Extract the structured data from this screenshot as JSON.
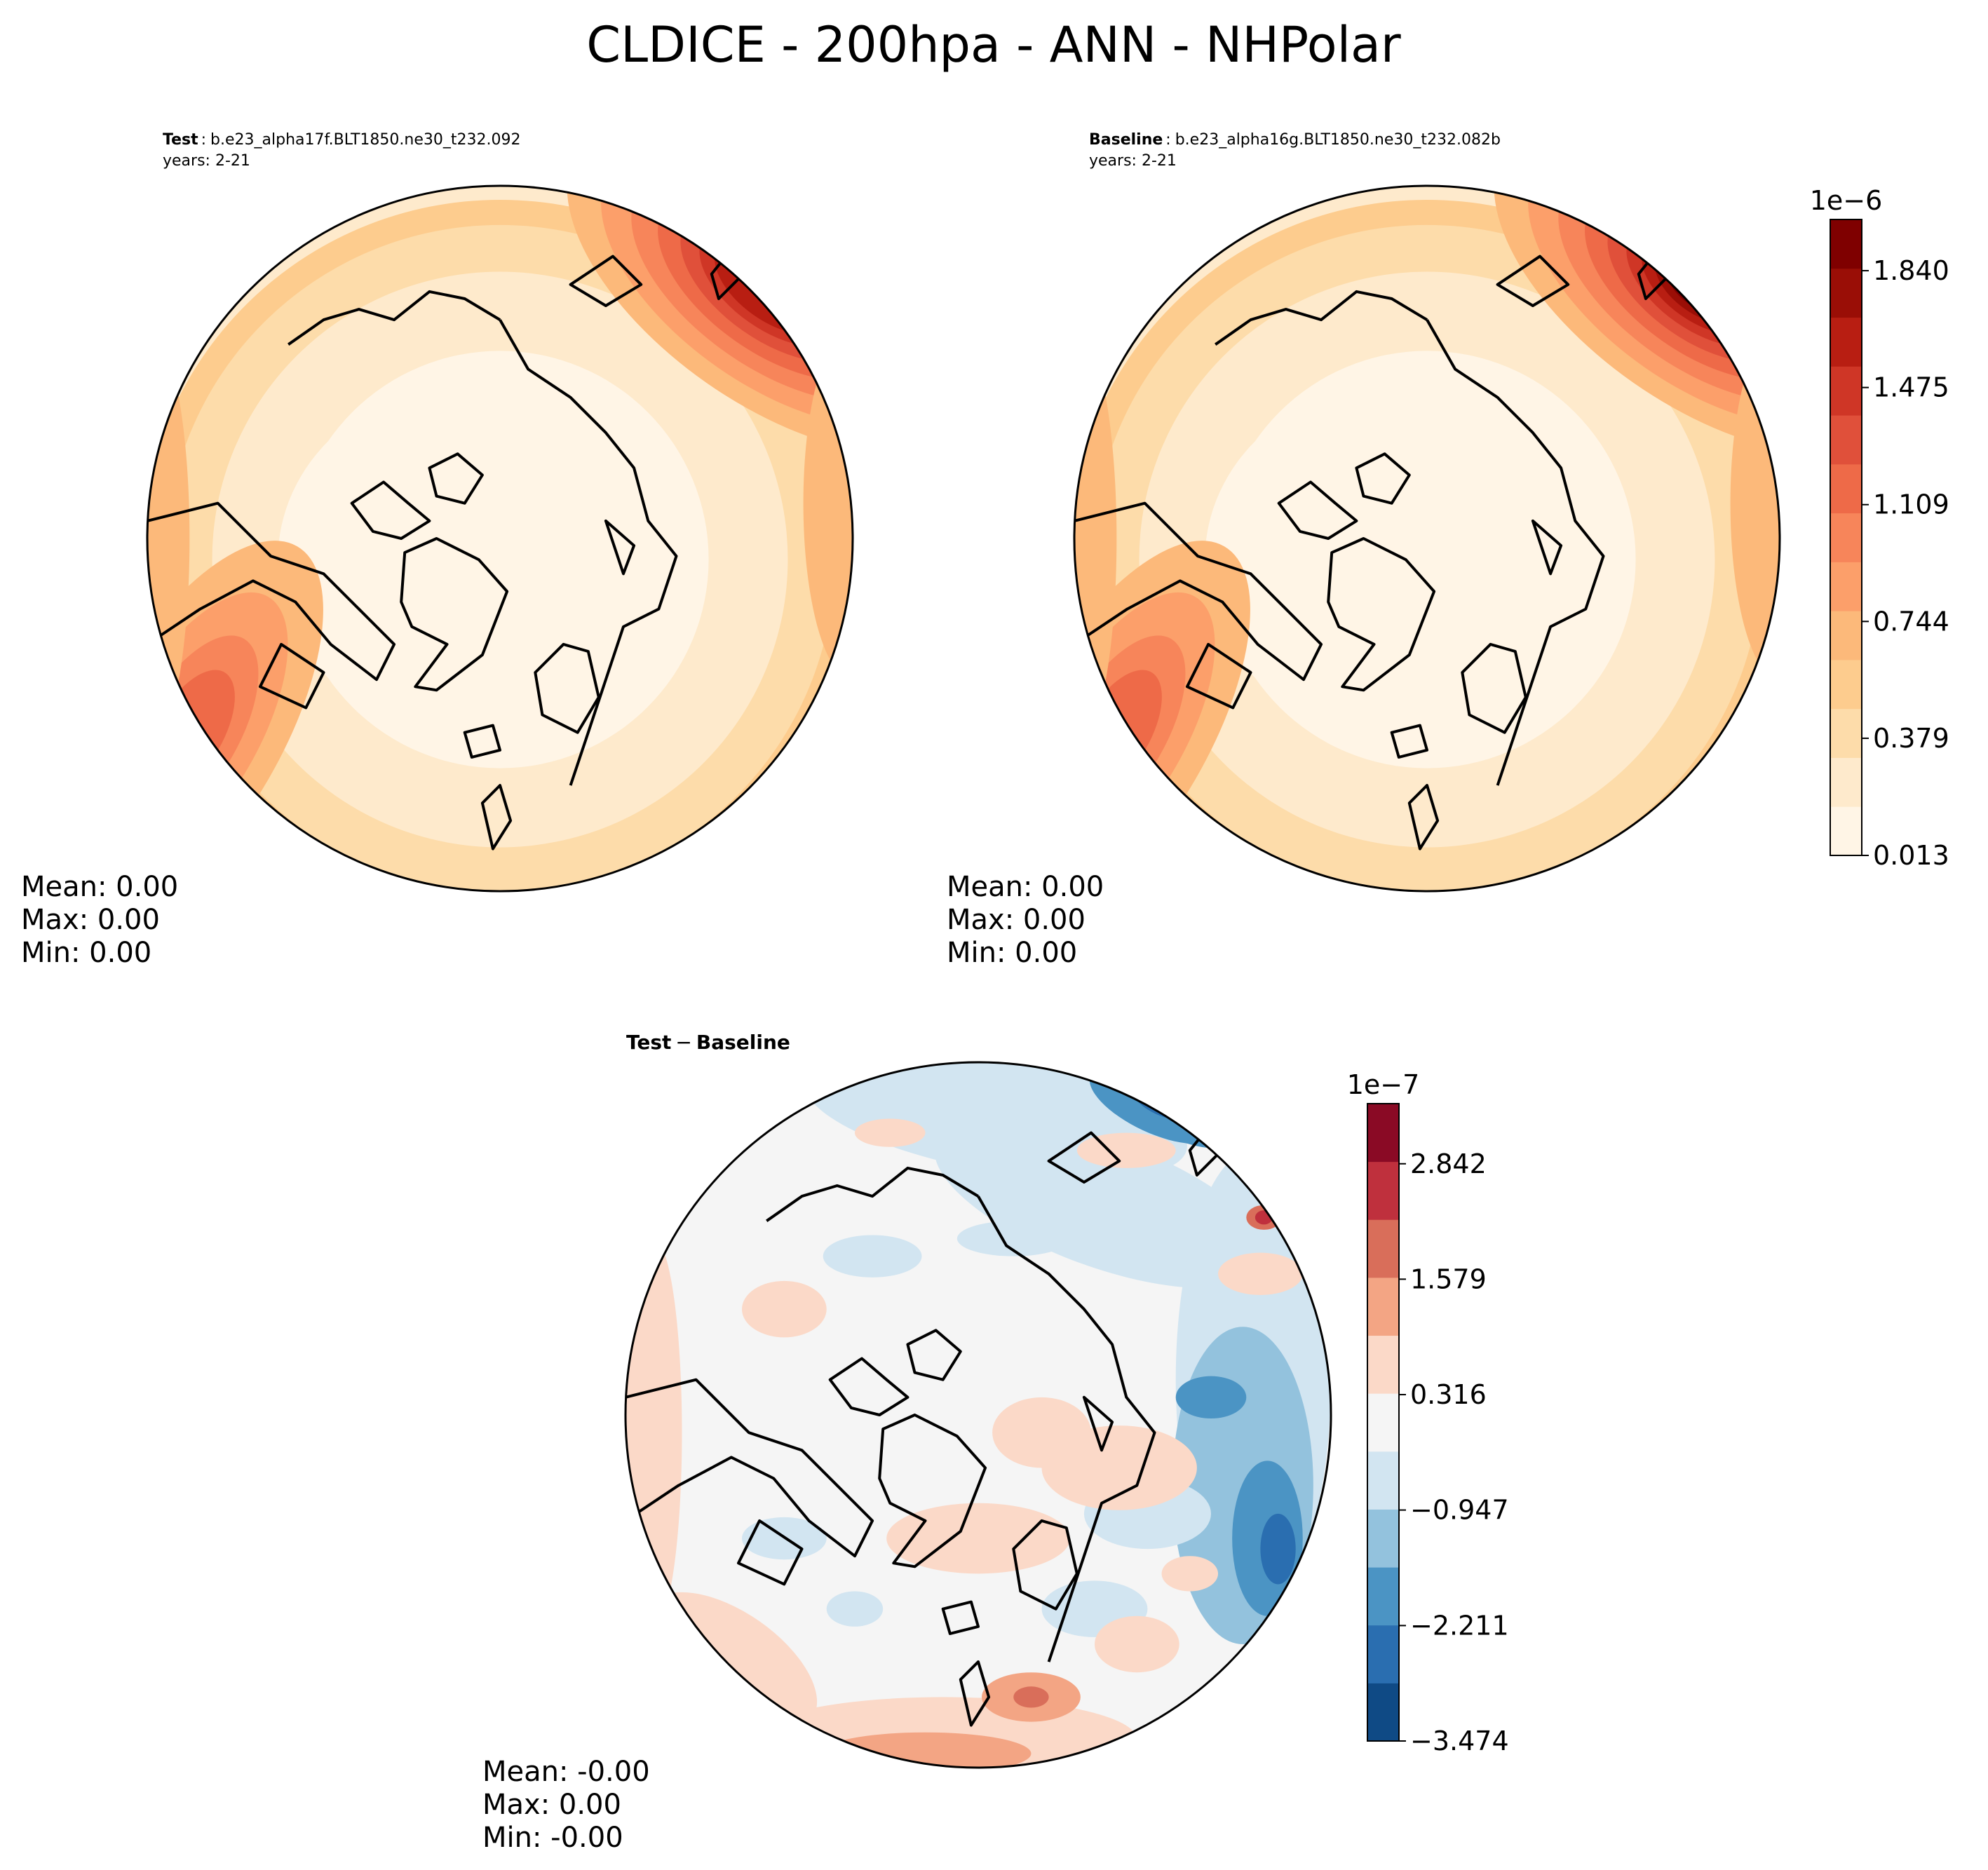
{
  "title": "CLDICE - 200hpa - ANN - NHPolar",
  "panels": [
    {
      "id": "test",
      "label_bold": "Test",
      "label_sep": ":",
      "case_name": "b.e23_alpha17f.BLT1850.ne30_t232.092",
      "years": "years: 2-21",
      "stats": {
        "mean": "Mean:  0.00",
        "max": "Max:  0.00",
        "min": "Min:  0.00"
      }
    },
    {
      "id": "baseline",
      "label_bold": "Baseline",
      "label_sep": ":",
      "case_name": "b.e23_alpha16g.BLT1850.ne30_t232.082b",
      "years": "years: 2-21",
      "stats": {
        "mean": "Mean:  0.00",
        "max": "Max:  0.00",
        "min": "Min:  0.00"
      }
    },
    {
      "id": "diff",
      "label_bold": "Test",
      "label_minus": "−",
      "label_bold2": "Baseline",
      "stats": {
        "mean": "Mean: -0.00",
        "max": "Max:  0.00",
        "min": "Min: -0.00"
      }
    }
  ],
  "chart_data": [
    {
      "type": "heatmap",
      "projection": "north-polar-stereographic",
      "panels": [
        "Test",
        "Baseline"
      ],
      "colormap": "OrRd-like",
      "colorbar": {
        "exponent_label": "1e−6",
        "ticks": [
          "0.013",
          "0.379",
          "0.744",
          "1.109",
          "1.475",
          "1.840"
        ],
        "range": [
          0.013,
          2.0
        ],
        "colors": [
          "#fff5e6",
          "#feeacc",
          "#fddcaa",
          "#fdcc8e",
          "#fcb97a",
          "#fc9f6a",
          "#f7855a",
          "#ee6a48",
          "#e0503a",
          "#cf3626",
          "#b81e12",
          "#9a0e06",
          "#7f0000"
        ]
      }
    },
    {
      "type": "heatmap",
      "projection": "north-polar-stereographic",
      "panels": [
        "Test − Baseline"
      ],
      "colormap": "RdBu_r-like",
      "colorbar": {
        "exponent_label": "1e−7",
        "ticks": [
          "−3.474",
          "−2.211",
          "−0.947",
          "0.316",
          "1.579",
          "2.842"
        ],
        "range": [
          -3.474,
          3.5
        ],
        "colors": [
          "#0f4a85",
          "#2a6eb0",
          "#4b94c4",
          "#93c2dd",
          "#d2e5f1",
          "#f5f5f5",
          "#fbd9c8",
          "#f3a584",
          "#d96e5a",
          "#bf303d",
          "#8a0a25"
        ]
      }
    }
  ]
}
